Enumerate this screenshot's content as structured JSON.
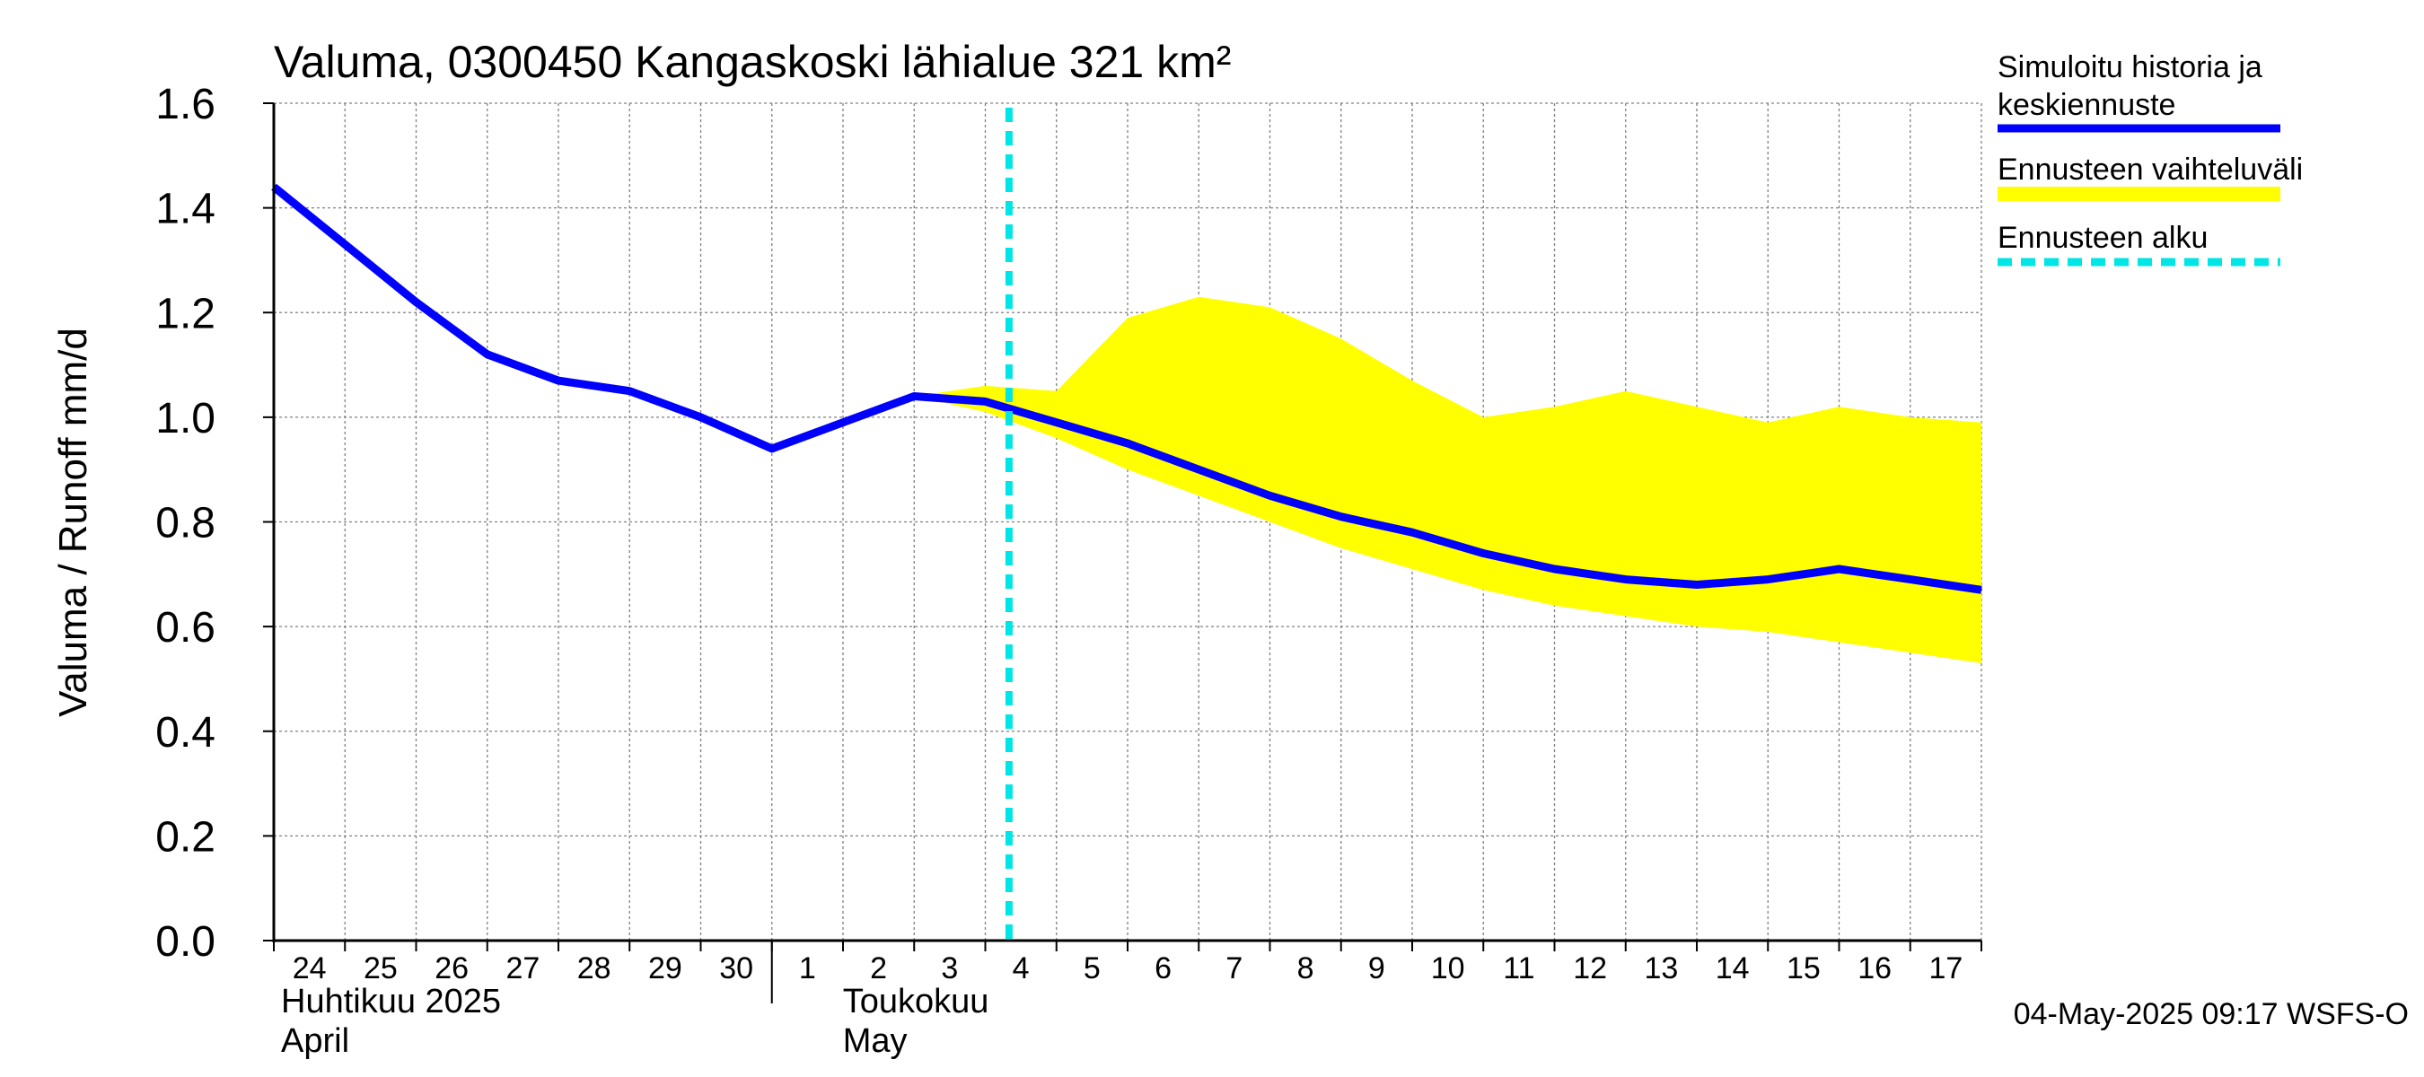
{
  "chart_data": {
    "type": "area",
    "title": "Valuma, 0300450 Kangaskoski lähialue 321 km²",
    "ylabel": "Valuma / Runoff    mm/d",
    "ylim": [
      0,
      1.6
    ],
    "yticks": [
      "0.0",
      "0.2",
      "0.4",
      "0.6",
      "0.8",
      "1.0",
      "1.2",
      "1.4",
      "1.6"
    ],
    "grid": true,
    "legend_position": "right",
    "colors": {
      "history": "#0000ff",
      "range": "#ffff00",
      "forecast_start": "#00e5e5",
      "grid": "#808080"
    },
    "x": [
      "2025-04-24",
      "2025-04-25",
      "2025-04-26",
      "2025-04-27",
      "2025-04-28",
      "2025-04-29",
      "2025-04-30",
      "2025-05-01",
      "2025-05-02",
      "2025-05-03",
      "2025-05-04",
      "2025-05-05",
      "2025-05-06",
      "2025-05-07",
      "2025-05-08",
      "2025-05-09",
      "2025-05-10",
      "2025-05-11",
      "2025-05-12",
      "2025-05-13",
      "2025-05-14",
      "2025-05-15",
      "2025-05-16",
      "2025-05-17",
      "2025-05-18"
    ],
    "xtick_labels": [
      "24",
      "25",
      "26",
      "27",
      "28",
      "29",
      "30",
      "1",
      "2",
      "3",
      "4",
      "5",
      "6",
      "7",
      "8",
      "9",
      "10",
      "11",
      "12",
      "13",
      "14",
      "15",
      "16",
      "17"
    ],
    "month_labels": [
      {
        "fi": "Huhtikuu  2025",
        "en": "April"
      },
      {
        "fi": "Toukokuu",
        "en": "May"
      }
    ],
    "series": [
      {
        "name": "Simuloitu historia ja keskiennuste",
        "values": [
          1.44,
          1.33,
          1.22,
          1.12,
          1.07,
          1.05,
          1.0,
          0.94,
          0.99,
          1.04,
          1.03,
          0.99,
          0.95,
          0.9,
          0.85,
          0.81,
          0.78,
          0.74,
          0.71,
          0.69,
          0.68,
          0.69,
          0.71,
          0.69,
          0.67
        ]
      },
      {
        "name": "Ennusteen vaihteluväli",
        "x": [
          "2025-05-03",
          "2025-05-04",
          "2025-05-05",
          "2025-05-06",
          "2025-05-07",
          "2025-05-08",
          "2025-05-09",
          "2025-05-10",
          "2025-05-11",
          "2025-05-12",
          "2025-05-13",
          "2025-05-14",
          "2025-05-15",
          "2025-05-16",
          "2025-05-17",
          "2025-05-18"
        ],
        "upper": [
          1.04,
          1.06,
          1.05,
          1.19,
          1.23,
          1.21,
          1.15,
          1.07,
          1.0,
          1.02,
          1.05,
          1.02,
          0.99,
          1.02,
          1.0,
          0.99
        ],
        "lower": [
          1.04,
          1.01,
          0.96,
          0.9,
          0.85,
          0.8,
          0.75,
          0.71,
          0.67,
          0.64,
          0.62,
          0.6,
          0.59,
          0.57,
          0.55,
          0.53
        ]
      },
      {
        "name": "Ennusteen alku",
        "x": "2025-05-04T08:00"
      }
    ],
    "footer": "04-May-2025 09:17 WSFS-O"
  }
}
